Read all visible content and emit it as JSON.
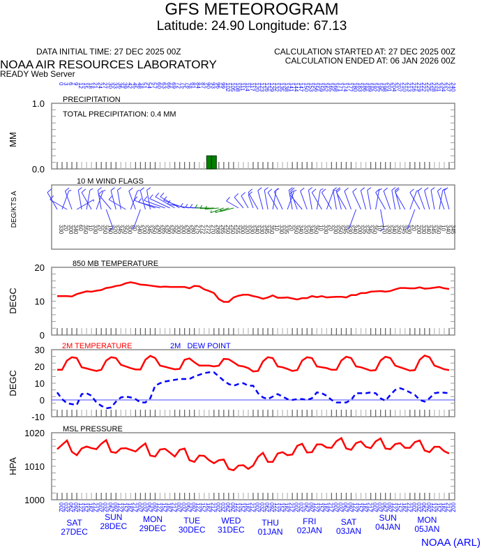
{
  "header": {
    "title": "GFS METEOROGRAM",
    "location": "Latitude: 24.90 Longitude:  67.13",
    "data_initial_time": "DATA INITIAL TIME: 27 DEC 2025 00Z",
    "calc_started": "CALCULATION STARTED AT: 27 DEC 2025 00Z",
    "calc_ended": "CALCULATION ENDED AT: 06 JAN 2026 00Z",
    "org": "NOAA AIR RESOURCES LABORATORY",
    "server": "READY Web Server",
    "footer": "NOAA (ARL)"
  },
  "colors": {
    "red": "#ff0000",
    "blue": "#0000ff",
    "green": "#008000",
    "axis_text": "#0000ff"
  },
  "chart_data": [
    {
      "type": "bar",
      "title": "PRECIPITATION",
      "annotation": "TOTAL PRECIPITATION:   0.4 MM",
      "ylabel": "MM",
      "ylim": [
        0,
        1.0
      ],
      "yticks": [
        "1.0",
        "0.0"
      ],
      "x_forecast_hours_step": 3,
      "bars": [
        {
          "index": 31,
          "value": 0.2
        },
        {
          "index": 32,
          "value": 0.2
        }
      ]
    },
    {
      "type": "wind_barbs",
      "title": "10 M  WIND FLAGS",
      "ylabel": "DEG/KTS A",
      "direction_deg": [
        330,
        20,
        300,
        340,
        60,
        350,
        10,
        330,
        20,
        350,
        160,
        320,
        345,
        350,
        300,
        20,
        340,
        200,
        345,
        350,
        290,
        285,
        290,
        295,
        300,
        300,
        290,
        280,
        275,
        272,
        272,
        270,
        268,
        265,
        250,
        250,
        255,
        300,
        320,
        330,
        340,
        330,
        345,
        350,
        10,
        330,
        335,
        20,
        350,
        340,
        320,
        340,
        350,
        10,
        330,
        20,
        330,
        350,
        345,
        330,
        340,
        200,
        335,
        345,
        350,
        10,
        170,
        330,
        340,
        350,
        345,
        330,
        20,
        200,
        330,
        340,
        345,
        350,
        10,
        340,
        345
      ],
      "green_range": [
        31,
        36
      ]
    },
    {
      "type": "line",
      "title": "850 MB  TEMPERATURE",
      "ylabel": "DEGC",
      "ylim": [
        0,
        20
      ],
      "yticks": [
        "20",
        "10",
        "0"
      ],
      "series": [
        {
          "name": "850 MB TEMPERATURE",
          "color": "#ff0000",
          "values": [
            11.5,
            11.5,
            11.5,
            11.4,
            12.1,
            12.5,
            12.9,
            12.8,
            13.1,
            13.3,
            13.9,
            14.1,
            14.5,
            14.7,
            15.3,
            15.6,
            15.3,
            14.9,
            14.8,
            14.6,
            14.4,
            14.2,
            14.3,
            14.2,
            14.2,
            14.2,
            14.2,
            13.8,
            14.5,
            14.4,
            13.5,
            13.0,
            12.4,
            10.6,
            9.8,
            9.8,
            11.1,
            11.6,
            11.9,
            11.9,
            11.5,
            11.2,
            10.7,
            11.1,
            11.7,
            11.0,
            11.0,
            11.1,
            10.8,
            10.5,
            10.9,
            10.9,
            11.5,
            11.2,
            11.5,
            11.1,
            11.2,
            11.3,
            11.3,
            11.1,
            11.8,
            11.8,
            12.4,
            12.4,
            12.8,
            12.9,
            13.0,
            12.8,
            13.0,
            13.5,
            13.9,
            13.9,
            13.8,
            13.8,
            14.1,
            13.7,
            13.8,
            14.0,
            14.2,
            13.8,
            13.6
          ]
        }
      ]
    },
    {
      "type": "line",
      "ylabel": "DEGC",
      "ylim": [
        -10,
        30
      ],
      "yticks": [
        "30",
        "20",
        "10",
        "0",
        "-10"
      ],
      "series": [
        {
          "name": "2M TEMPERATURE",
          "color": "#ff0000",
          "values": [
            18,
            18,
            23.5,
            25.5,
            25,
            19.5,
            18.8,
            18,
            17.3,
            18,
            23.5,
            25.5,
            25,
            21,
            20,
            19,
            18.2,
            18.2,
            24,
            26.3,
            25,
            20.5,
            19.8,
            19,
            18.3,
            18.5,
            24,
            24.8,
            22.5,
            20.5,
            20.5,
            20.5,
            20,
            20.5,
            24.5,
            24.3,
            22.5,
            20.5,
            20,
            19,
            17,
            17.3,
            23,
            25.5,
            25,
            20,
            19.5,
            18.5,
            17.3,
            17.8,
            23.5,
            25.5,
            25,
            20,
            19.5,
            19,
            18,
            18,
            23.5,
            25.8,
            25,
            20,
            19.5,
            18.5,
            17.5,
            17.8,
            23.5,
            25.8,
            25,
            20.5,
            19.5,
            18.5,
            17.5,
            17.8,
            24,
            26.5,
            25.5,
            20.5,
            19.5,
            18.3,
            17.8
          ]
        },
        {
          "name": "2M   DEW POINT",
          "color": "#0000ff",
          "values": [
            4.5,
            0.5,
            -2,
            -2.5,
            -3,
            3.5,
            4,
            2.5,
            -1.5,
            -3.5,
            -5,
            -4.5,
            -1,
            1.5,
            2,
            1.5,
            0.5,
            -1.5,
            -1.5,
            1,
            8.5,
            10,
            11,
            11.5,
            12,
            12.5,
            12.5,
            12.5,
            14,
            15,
            16,
            16.5,
            16.5,
            14,
            11.5,
            9.5,
            8.5,
            9.5,
            10,
            8.5,
            8.5,
            4,
            1.5,
            0.5,
            2,
            3.5,
            2,
            0.5,
            0,
            0.5,
            0.5,
            0,
            1,
            4.5,
            4,
            2.5,
            0,
            -1.5,
            -1.5,
            -1.5,
            0,
            4,
            4,
            4,
            4.5,
            4,
            1,
            -0.5,
            3,
            6,
            7,
            6,
            4.5,
            3,
            0,
            -1,
            1,
            4,
            4.5,
            4.3,
            4
          ]
        }
      ]
    },
    {
      "type": "line",
      "title": "MSL PRESSURE",
      "ylabel": "HPA",
      "ylim": [
        1000,
        1020
      ],
      "yticks": [
        "1020",
        "1010",
        "1000"
      ],
      "series": [
        {
          "name": "MSL PRESSURE",
          "color": "#ff0000",
          "values": [
            1015.1,
            1016.4,
            1017.7,
            1014.3,
            1013.3,
            1015.3,
            1015.9,
            1015.4,
            1015.1,
            1016.7,
            1017.8,
            1014.3,
            1014.0,
            1015.3,
            1015.4,
            1014.9,
            1014.4,
            1015.7,
            1016.8,
            1013.2,
            1012.9,
            1015.0,
            1015.2,
            1014.1,
            1012.9,
            1014.9,
            1015.3,
            1011.8,
            1011.3,
            1013.2,
            1013.1,
            1011.8,
            1010.9,
            1011.8,
            1012.0,
            1009.2,
            1008.8,
            1010.2,
            1010.3,
            1009.2,
            1010.2,
            1012.8,
            1014.0,
            1011.3,
            1011.3,
            1013.8,
            1014.2,
            1013.3,
            1013.5,
            1016.1,
            1016.7,
            1014.1,
            1014.2,
            1016.5,
            1016.5,
            1015.6,
            1015.5,
            1017.5,
            1018.4,
            1015.3,
            1014.9,
            1016.9,
            1017.4,
            1015.8,
            1015.4,
            1017.4,
            1018.3,
            1015.3,
            1015.1,
            1016.6,
            1016.9,
            1015.5,
            1015.5,
            1017.2,
            1017.7,
            1014.7,
            1014.2,
            1015.8,
            1015.8,
            1014.5,
            1013.8
          ]
        }
      ]
    }
  ],
  "days": [
    {
      "dow": "SAT",
      "date": "27DEC"
    },
    {
      "dow": "SUN",
      "date": "28DEC"
    },
    {
      "dow": "MON",
      "date": "29DEC"
    },
    {
      "dow": "TUE",
      "date": "30DEC"
    },
    {
      "dow": "WED",
      "date": "31DEC"
    },
    {
      "dow": "THU",
      "date": "01JAN"
    },
    {
      "dow": "FRI",
      "date": "02JAN"
    },
    {
      "dow": "SAT",
      "date": "03JAN"
    },
    {
      "dow": "SUN",
      "date": "04JAN"
    },
    {
      "dow": "MON",
      "date": "05JAN"
    }
  ]
}
